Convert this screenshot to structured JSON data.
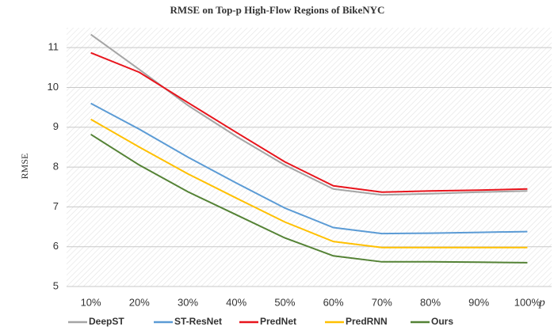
{
  "chart_data": {
    "type": "line",
    "title": "RMSE on Top-p High-Flow Regions of BikeNYC",
    "y_label": "RMSE",
    "x_label": "p",
    "categories": [
      "10%",
      "20%",
      "30%",
      "40%",
      "50%",
      "60%",
      "70%",
      "80%",
      "90%",
      "100%"
    ],
    "series": [
      {
        "name": "DeepST",
        "color": "#a5a5a5",
        "values": [
          11.33,
          10.45,
          9.55,
          8.77,
          8.05,
          7.45,
          7.3,
          7.33,
          7.37,
          7.4
        ]
      },
      {
        "name": "ST-ResNet",
        "color": "#5b9bd5",
        "values": [
          9.6,
          8.95,
          8.25,
          7.6,
          6.97,
          6.48,
          6.33,
          6.34,
          6.36,
          6.38
        ]
      },
      {
        "name": "PredNet",
        "color": "#e8141c",
        "values": [
          10.87,
          10.38,
          9.62,
          8.87,
          8.13,
          7.53,
          7.37,
          7.4,
          7.42,
          7.45
        ]
      },
      {
        "name": "PredRNN",
        "color": "#ffc000",
        "values": [
          9.2,
          8.5,
          7.83,
          7.22,
          6.62,
          6.13,
          5.98,
          5.98,
          5.98,
          5.98
        ]
      },
      {
        "name": "Ours",
        "color": "#548235",
        "values": [
          8.82,
          8.05,
          7.38,
          6.8,
          6.22,
          5.77,
          5.62,
          5.62,
          5.61,
          5.6
        ]
      }
    ],
    "ylim": [
      5,
      11.5
    ],
    "yticks": [
      5,
      6,
      7,
      8,
      9,
      10,
      11
    ],
    "grid": true,
    "legend": "bottom"
  }
}
